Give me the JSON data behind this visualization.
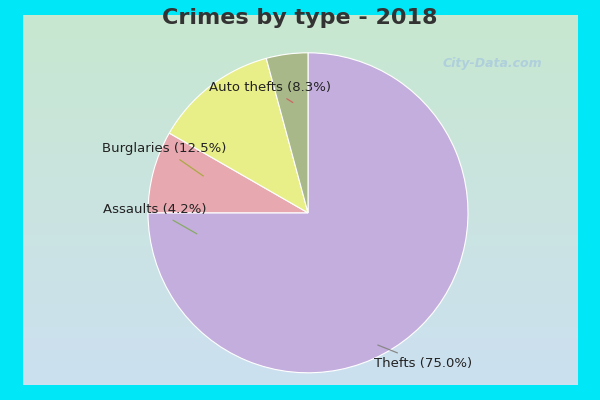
{
  "title": "Crimes by type - 2018",
  "slices": [
    {
      "label": "Thefts (75.0%)",
      "value": 75.0,
      "color": "#c4aede"
    },
    {
      "label": "Auto thefts (8.3%)",
      "value": 8.3,
      "color": "#e8a8b0"
    },
    {
      "label": "Burglaries (12.5%)",
      "value": 12.5,
      "color": "#e8ee88"
    },
    {
      "label": "Assaults (4.2%)",
      "value": 4.2,
      "color": "#a8b888"
    }
  ],
  "bg_border": "#00e8f8",
  "bg_grad_top": "#c8e8d0",
  "bg_grad_bottom": "#cce0f0",
  "title_fontsize": 16,
  "title_color": "#333333",
  "annotation_fontsize": 9.5,
  "watermark_color": "#aaccdd",
  "watermark_text": "City-Data.com"
}
